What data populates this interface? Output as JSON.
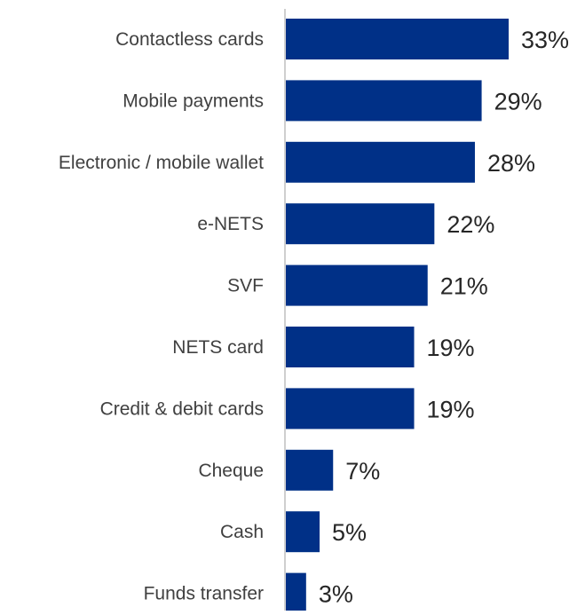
{
  "chart_data": {
    "type": "bar",
    "orientation": "horizontal",
    "categories": [
      "Contactless cards",
      "Mobile payments",
      "Electronic / mobile wallet",
      "e-NETS",
      "SVF",
      "NETS card",
      "Credit & debit cards",
      "Cheque",
      "Cash",
      "Funds transfer"
    ],
    "values": [
      33,
      29,
      28,
      22,
      21,
      19,
      19,
      7,
      5,
      3
    ],
    "value_labels": [
      "33%",
      "29%",
      "28%",
      "22%",
      "21%",
      "19%",
      "19%",
      "7%",
      "5%",
      "3%"
    ],
    "unit": "%",
    "xlim": [
      0,
      40
    ],
    "grid": false,
    "legend": "none",
    "bar_color": "#003087",
    "axis_color": "#bfbfbf"
  }
}
